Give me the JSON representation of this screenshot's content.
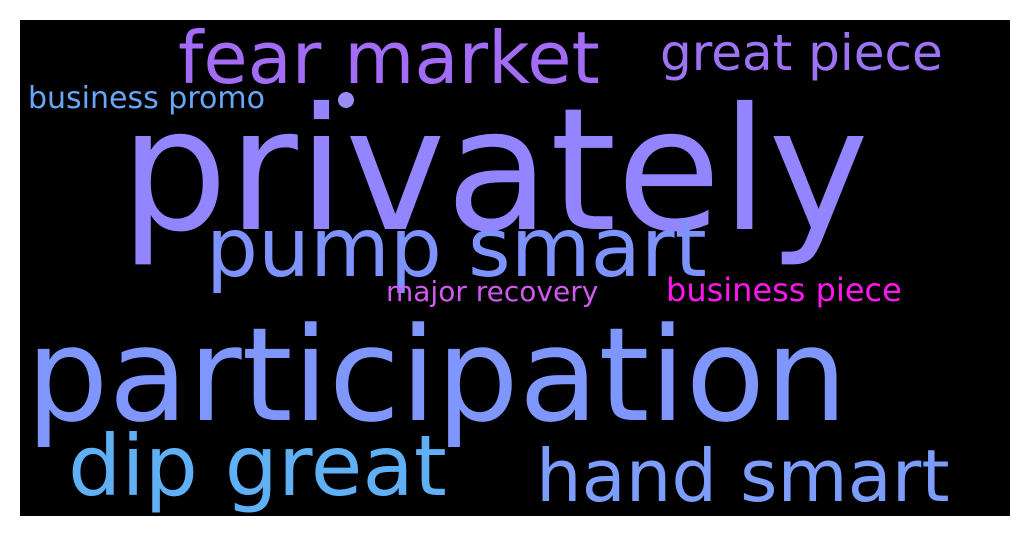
{
  "wordcloud": {
    "words": [
      {
        "text": "fear market",
        "color": "#a36cf6"
      },
      {
        "text": "great piece",
        "color": "#9c74f3"
      },
      {
        "text": "business promo",
        "color": "#67a7f6"
      },
      {
        "text": "privately",
        "color": "#9285ff"
      },
      {
        "text": "pump smart",
        "color": "#7e93ff"
      },
      {
        "text": "major recovery",
        "color": "#cf5aee"
      },
      {
        "text": "business piece",
        "color": "#ff16ee"
      },
      {
        "text": "participation",
        "color": "#7f96fd"
      },
      {
        "text": "dip great",
        "color": "#5fb0f4"
      },
      {
        "text": "hand smart",
        "color": "#7c9dfc"
      }
    ],
    "dot_color": "#9a8cf7"
  }
}
